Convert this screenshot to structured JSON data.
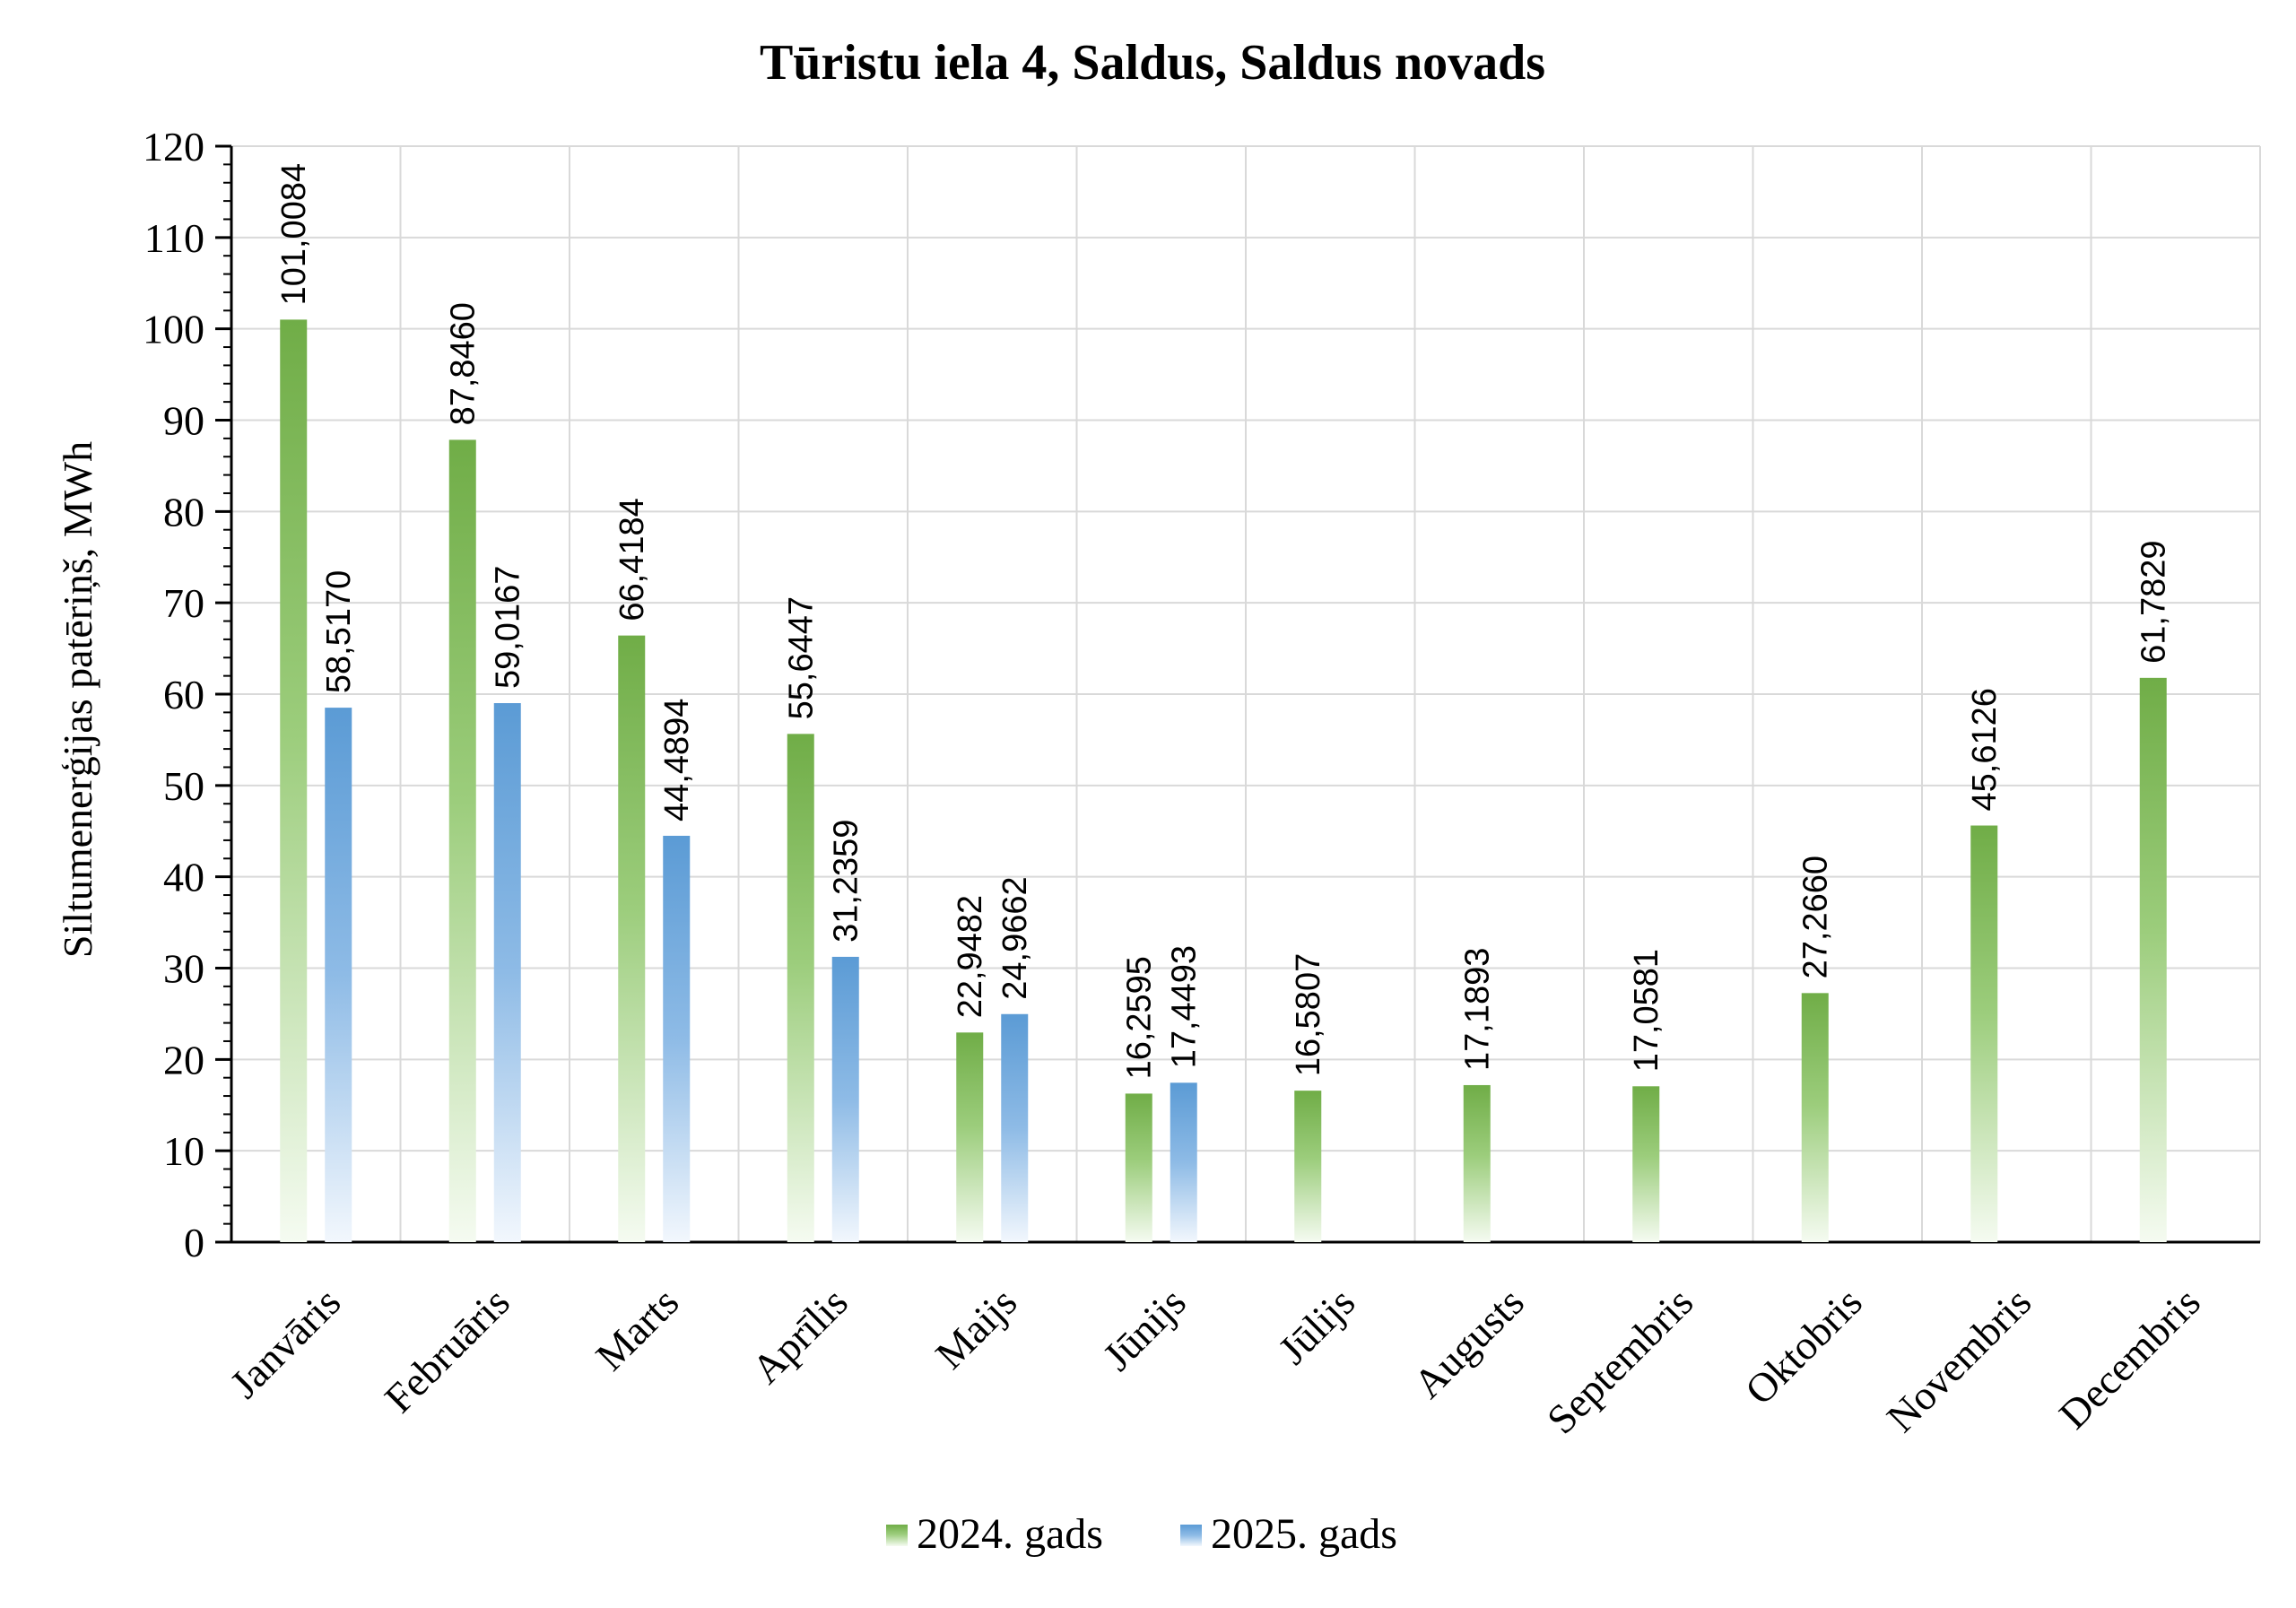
{
  "chart_data": {
    "type": "bar",
    "title": "Tūristu iela 4, Saldus, Saldus novads",
    "ylabel": "Siltumenerģijas patēriņš, MWh",
    "xlabel": "",
    "ylim": [
      0,
      120
    ],
    "yticks": [
      0,
      10,
      20,
      30,
      40,
      50,
      60,
      70,
      80,
      90,
      100,
      110,
      120
    ],
    "grid": true,
    "legend_position": "bottom",
    "categories": [
      "Janvāris",
      "Februāris",
      "Marts",
      "Aprīlis",
      "Maijs",
      "Jūnijs",
      "Jūlijs",
      "Augusts",
      "Septembris",
      "Oktobris",
      "Novembris",
      "Decembris"
    ],
    "series": [
      {
        "name": "2024. gads",
        "color": "#70ad47",
        "values": [
          101.0084,
          87.846,
          66.4184,
          55.6447,
          22.9482,
          16.2595,
          16.5807,
          17.1893,
          17.0581,
          27.266,
          45.6126,
          61.7829
        ],
        "labels": [
          "101,0084",
          "87,8460",
          "66,4184",
          "55,6447",
          "22,9482",
          "16,2595",
          "16,5807",
          "17,1893",
          "17,0581",
          "27,2660",
          "45,6126",
          "61,7829"
        ]
      },
      {
        "name": "2025. gads",
        "color": "#5b9bd5",
        "values": [
          58.517,
          59.0167,
          44.4894,
          31.2359,
          24.9662,
          17.4493,
          null,
          null,
          null,
          null,
          null,
          null
        ],
        "labels": [
          "58,5170",
          "59,0167",
          "44,4894",
          "31,2359",
          "24,9662",
          "17,4493",
          null,
          null,
          null,
          null,
          null,
          null
        ]
      }
    ]
  }
}
